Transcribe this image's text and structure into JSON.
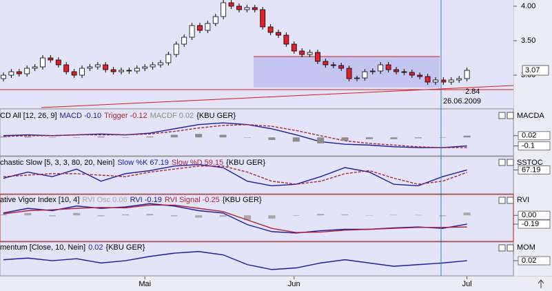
{
  "chart_data": [
    {
      "type": "candlestick",
      "categories": [
        null,
        null,
        null,
        null,
        null,
        null,
        null,
        null,
        null,
        null,
        null,
        null,
        null,
        null,
        null,
        null,
        null,
        null,
        "Mai",
        null,
        null,
        null,
        null,
        null,
        null,
        null,
        null,
        null,
        null,
        null,
        null,
        null,
        null,
        null,
        null,
        null,
        null,
        "Jun",
        null,
        null,
        null,
        null,
        null,
        null,
        null,
        null,
        null,
        null,
        null,
        null,
        null,
        null,
        null,
        null,
        null,
        null,
        null,
        null,
        null,
        "Jul"
      ],
      "open": [
        2.95,
        3.0,
        3.05,
        3.02,
        3.1,
        3.12,
        3.25,
        3.22,
        3.15,
        3.05,
        3.0,
        3.1,
        3.12,
        3.15,
        3.08,
        3.05,
        3.07,
        3.06,
        3.1,
        3.12,
        3.15,
        3.18,
        3.3,
        3.45,
        3.55,
        3.72,
        3.65,
        3.75,
        3.85,
        4.05,
        4.0,
        3.95,
        3.98,
        3.95,
        3.7,
        3.62,
        3.58,
        3.45,
        3.35,
        3.3,
        3.33,
        3.2,
        3.15,
        3.14,
        3.1,
        2.95,
        2.96,
        3.05,
        3.06,
        3.15,
        3.08,
        3.05,
        3.04,
        3.0,
        2.98,
        2.9,
        2.93,
        2.9,
        2.93,
        2.95
      ],
      "high": [
        3.04,
        3.09,
        3.09,
        3.14,
        3.16,
        3.29,
        3.29,
        3.26,
        3.19,
        3.09,
        3.14,
        3.16,
        3.19,
        3.19,
        3.12,
        3.11,
        3.11,
        3.14,
        3.16,
        3.19,
        3.22,
        3.34,
        3.49,
        3.59,
        3.76,
        3.76,
        3.79,
        3.89,
        4.09,
        4.09,
        4.04,
        4.02,
        4.02,
        3.99,
        3.74,
        3.66,
        3.62,
        3.49,
        3.39,
        3.37,
        3.37,
        3.24,
        3.19,
        3.18,
        3.14,
        2.99,
        3.09,
        3.1,
        3.19,
        3.19,
        3.12,
        3.09,
        3.08,
        3.04,
        3.02,
        2.97,
        2.97,
        2.97,
        2.99,
        3.11
      ],
      "low": [
        2.91,
        2.96,
        2.98,
        2.98,
        3.06,
        3.08,
        3.18,
        3.11,
        3.01,
        2.96,
        2.96,
        3.06,
        3.08,
        3.04,
        3.01,
        3.01,
        3.02,
        3.02,
        3.06,
        3.08,
        3.11,
        3.14,
        3.26,
        3.41,
        3.51,
        3.61,
        3.61,
        3.71,
        3.81,
        3.96,
        3.91,
        3.91,
        3.91,
        3.66,
        3.58,
        3.54,
        3.41,
        3.31,
        3.26,
        3.26,
        3.16,
        3.11,
        3.1,
        3.06,
        2.91,
        2.91,
        2.92,
        3.01,
        3.02,
        3.04,
        3.01,
        3.0,
        2.96,
        2.94,
        2.86,
        2.86,
        2.86,
        2.86,
        2.89,
        2.91
      ],
      "close": [
        3.0,
        3.05,
        3.02,
        3.1,
        3.12,
        3.25,
        3.22,
        3.15,
        3.05,
        3.0,
        3.1,
        3.12,
        3.15,
        3.08,
        3.05,
        3.07,
        3.06,
        3.1,
        3.12,
        3.15,
        3.18,
        3.3,
        3.45,
        3.55,
        3.72,
        3.65,
        3.75,
        3.85,
        4.05,
        4.0,
        3.95,
        3.98,
        3.95,
        3.7,
        3.62,
        3.58,
        3.45,
        3.35,
        3.3,
        3.33,
        3.2,
        3.15,
        3.14,
        3.1,
        2.95,
        2.96,
        3.05,
        3.06,
        3.15,
        3.08,
        3.05,
        3.04,
        3.0,
        2.98,
        2.9,
        2.93,
        2.9,
        2.93,
        2.95,
        3.07
      ],
      "up_color": "#ffffff",
      "down_color": "#e0202a",
      "ylim": [
        2.54,
        4.09
      ],
      "yticks": [
        {
          "value": 4,
          "label": "4.00"
        },
        {
          "value": 3.5,
          "label": "3.50"
        },
        {
          "value": 3,
          "label": "3.00"
        }
      ],
      "last_value": 3.07,
      "annotations": [
        {
          "text": "2.84",
          "color": "#d02020"
        },
        {
          "text": "26.06.2009",
          "color": "#3a8a8a"
        }
      ]
    },
    {
      "type": "line",
      "title": "CD All [12, 26, 9]",
      "source": "{KBU GER}",
      "axis_title": "MACDA",
      "categories": [
        null,
        null,
        null,
        null,
        null,
        null,
        null,
        null,
        null,
        null,
        null,
        null,
        null,
        null,
        null,
        null,
        null,
        null,
        null,
        null
      ],
      "series": [
        {
          "name": "MACD -0.10",
          "color": "#1a1aa0",
          "kind": "line",
          "dash": false,
          "values": [
            0.02,
            0.03,
            0.02,
            0.03,
            0.04,
            0.03,
            0.05,
            0.1,
            0.15,
            0.17,
            0.15,
            0.1,
            0.03,
            -0.05,
            -0.08,
            -0.09,
            -0.11,
            -0.12,
            -0.12,
            -0.1
          ]
        },
        {
          "name": "Trigger -0.12",
          "color": "#b0203a",
          "kind": "line",
          "dash": true,
          "values": [
            0.01,
            0.02,
            0.02,
            0.03,
            0.03,
            0.03,
            0.04,
            0.07,
            0.11,
            0.14,
            0.15,
            0.13,
            0.08,
            0.02,
            -0.04,
            -0.07,
            -0.09,
            -0.11,
            -0.12,
            -0.12
          ]
        },
        {
          "name": "MACDF 0.02",
          "color": "#8c8c8c",
          "kind": "bar",
          "dash": false,
          "values": [
            0.01,
            0.01,
            0,
            0,
            0.01,
            0,
            0.01,
            0.03,
            0.04,
            0.03,
            0,
            -0.03,
            -0.05,
            -0.07,
            -0.04,
            -0.02,
            -0.02,
            -0.01,
            0,
            0.02
          ]
        }
      ],
      "ylim": [
        -0.2,
        0.22
      ],
      "yticks": [
        0.02,
        -0.1
      ]
    },
    {
      "type": "line",
      "title": "chastic Slow [5, 3, 3, 80, 20, Nein]",
      "source": "{KBU GER}",
      "axis_title": "SSTOC",
      "categories": [
        null,
        null,
        null,
        null,
        null,
        null,
        null,
        null,
        null,
        null,
        null,
        null,
        null,
        null,
        null,
        null,
        null,
        null,
        null,
        null
      ],
      "series": [
        {
          "name": "Slow %K 67.19",
          "color": "#1a1aa0",
          "kind": "line",
          "dash": false,
          "values": [
            40,
            60,
            45,
            70,
            30,
            55,
            65,
            80,
            85,
            75,
            30,
            15,
            20,
            45,
            75,
            60,
            20,
            15,
            45,
            67.19
          ]
        },
        {
          "name": "Slow %D 59.15",
          "color": "#b0203a",
          "kind": "line",
          "dash": true,
          "values": [
            45,
            50,
            55,
            55,
            50,
            45,
            60,
            70,
            80,
            80,
            60,
            30,
            20,
            30,
            55,
            65,
            40,
            20,
            30,
            59.15
          ]
        }
      ],
      "ylim": [
        0,
        100
      ],
      "yticks": [
        67.19
      ]
    },
    {
      "type": "line",
      "title": "ative Vigor Index [10, 4]",
      "source": "{KBU GER}",
      "axis_title": "RVI",
      "categories": [
        null,
        null,
        null,
        null,
        null,
        null,
        null,
        null,
        null,
        null,
        null,
        null,
        null,
        null,
        null,
        null,
        null,
        null,
        null,
        null
      ],
      "series": [
        {
          "name": "RVI Osc 0.06",
          "color": "#a8a8a8",
          "kind": "bar",
          "dash": false,
          "values": [
            0.02,
            0.05,
            -0.02,
            0.05,
            -0.02,
            0.02,
            0.03,
            -0.02,
            -0.05,
            -0.03,
            -0.1,
            -0.07,
            -0.01,
            0.03,
            0.02,
            0,
            0.01,
            0.01,
            -0.02,
            0.06
          ]
        },
        {
          "name": "RVI -0.19",
          "color": "#1a1aa0",
          "kind": "line",
          "dash": false,
          "values": [
            0.05,
            0.15,
            0.1,
            0.2,
            0.15,
            0.18,
            0.25,
            0.2,
            0.1,
            0.05,
            -0.2,
            -0.35,
            -0.38,
            -0.33,
            -0.3,
            -0.3,
            -0.27,
            -0.25,
            -0.28,
            -0.19
          ]
        },
        {
          "name": "RVI Signal -0.25",
          "color": "#b0203a",
          "kind": "line",
          "dash": false,
          "values": [
            0.03,
            0.1,
            0.12,
            0.15,
            0.17,
            0.16,
            0.22,
            0.22,
            0.15,
            0.08,
            -0.1,
            -0.28,
            -0.37,
            -0.36,
            -0.32,
            -0.3,
            -0.28,
            -0.26,
            -0.26,
            -0.25
          ]
        }
      ],
      "ylim": [
        -0.5,
        0.3
      ],
      "yticks": [
        {
          "value": 0,
          "label": "0.00"
        },
        -0.19
      ]
    },
    {
      "type": "line",
      "title": "mentum [Close, 10, Nein]",
      "source": "{KBU GER}",
      "axis_title": "MOM",
      "categories": [
        null,
        null,
        null,
        null,
        null,
        null,
        null,
        null,
        null,
        null,
        null,
        null,
        null,
        null,
        null,
        null,
        null,
        null,
        null,
        null
      ],
      "series": [
        {
          "name": "0.02",
          "color": "#1a1aa0",
          "kind": "line",
          "dash": false,
          "values": [
            0.05,
            0.1,
            0.02,
            0.08,
            -0.05,
            0.02,
            0.15,
            0.25,
            0.3,
            0.2,
            -0.1,
            -0.25,
            -0.2,
            -0.05,
            0.05,
            -0.05,
            -0.15,
            -0.1,
            -0.05,
            0.02
          ]
        }
      ],
      "ylim": [
        -0.4,
        0.4
      ],
      "yticks": [
        0.02
      ]
    }
  ]
}
